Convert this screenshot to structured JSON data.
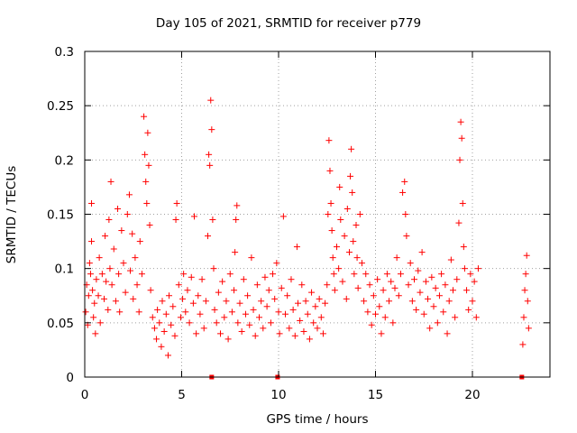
{
  "chart_data": {
    "type": "scatter",
    "title": "Day 105 of 2021, SRMTID for receiver p779",
    "xlabel": "GPS time / hours",
    "ylabel": "SRMTID / TECUs",
    "xlim": [
      0,
      24
    ],
    "ylim": [
      0,
      0.3
    ],
    "x_ticks": [
      0,
      5,
      10,
      15,
      20
    ],
    "x_tick_labels": [
      "0",
      "5",
      "10",
      "15",
      "20"
    ],
    "y_ticks": [
      0,
      0.05,
      0.1,
      0.15,
      0.2,
      0.25,
      0.3
    ],
    "y_tick_labels": [
      "0",
      "0.05",
      "0.1",
      "0.15",
      "0.2",
      "0.25",
      "0.3"
    ],
    "grid": true,
    "series_color": "#ff0000",
    "marker": "+",
    "zero_markers_x": [
      6.55,
      9.95,
      22.55
    ],
    "series": [
      {
        "name": "SRMTID",
        "points": [
          [
            0.05,
            0.06
          ],
          [
            0.1,
            0.085
          ],
          [
            0.15,
            0.048
          ],
          [
            0.2,
            0.075
          ],
          [
            0.25,
            0.105
          ],
          [
            0.3,
            0.095
          ],
          [
            0.35,
            0.16
          ],
          [
            0.35,
            0.125
          ],
          [
            0.4,
            0.08
          ],
          [
            0.45,
            0.055
          ],
          [
            0.5,
            0.068
          ],
          [
            0.55,
            0.04
          ],
          [
            0.6,
            0.09
          ],
          [
            0.7,
            0.075
          ],
          [
            0.75,
            0.11
          ],
          [
            0.8,
            0.05
          ],
          [
            0.9,
            0.095
          ],
          [
            1.0,
            0.072
          ],
          [
            1.05,
            0.13
          ],
          [
            1.1,
            0.088
          ],
          [
            1.2,
            0.062
          ],
          [
            1.25,
            0.145
          ],
          [
            1.3,
            0.1
          ],
          [
            1.35,
            0.18
          ],
          [
            1.4,
            0.085
          ],
          [
            1.5,
            0.118
          ],
          [
            1.6,
            0.07
          ],
          [
            1.7,
            0.155
          ],
          [
            1.75,
            0.095
          ],
          [
            1.8,
            0.06
          ],
          [
            1.9,
            0.135
          ],
          [
            2.0,
            0.105
          ],
          [
            2.1,
            0.078
          ],
          [
            2.2,
            0.15
          ],
          [
            2.3,
            0.168
          ],
          [
            2.35,
            0.098
          ],
          [
            2.45,
            0.132
          ],
          [
            2.5,
            0.072
          ],
          [
            2.6,
            0.11
          ],
          [
            2.7,
            0.085
          ],
          [
            2.8,
            0.06
          ],
          [
            2.85,
            0.125
          ],
          [
            2.95,
            0.095
          ],
          [
            3.05,
            0.24
          ],
          [
            3.1,
            0.205
          ],
          [
            3.15,
            0.18
          ],
          [
            3.2,
            0.16
          ],
          [
            3.25,
            0.225
          ],
          [
            3.3,
            0.195
          ],
          [
            3.35,
            0.14
          ],
          [
            3.4,
            0.08
          ],
          [
            3.5,
            0.055
          ],
          [
            3.6,
            0.045
          ],
          [
            3.7,
            0.035
          ],
          [
            3.75,
            0.062
          ],
          [
            3.85,
            0.05
          ],
          [
            3.95,
            0.028
          ],
          [
            4.0,
            0.07
          ],
          [
            4.1,
            0.042
          ],
          [
            4.2,
            0.058
          ],
          [
            4.3,
            0.02
          ],
          [
            4.35,
            0.075
          ],
          [
            4.45,
            0.048
          ],
          [
            4.55,
            0.065
          ],
          [
            4.65,
            0.038
          ],
          [
            4.7,
            0.145
          ],
          [
            4.75,
            0.16
          ],
          [
            4.85,
            0.085
          ],
          [
            4.95,
            0.055
          ],
          [
            5.05,
            0.072
          ],
          [
            5.1,
            0.095
          ],
          [
            5.2,
            0.06
          ],
          [
            5.3,
            0.08
          ],
          [
            5.4,
            0.05
          ],
          [
            5.5,
            0.092
          ],
          [
            5.6,
            0.068
          ],
          [
            5.65,
            0.148
          ],
          [
            5.75,
            0.04
          ],
          [
            5.85,
            0.075
          ],
          [
            5.95,
            0.058
          ],
          [
            6.05,
            0.09
          ],
          [
            6.15,
            0.045
          ],
          [
            6.25,
            0.07
          ],
          [
            6.35,
            0.13
          ],
          [
            6.4,
            0.205
          ],
          [
            6.45,
            0.195
          ],
          [
            6.5,
            0.255
          ],
          [
            6.55,
            0.228
          ],
          [
            6.6,
            0.145
          ],
          [
            6.65,
            0.1
          ],
          [
            6.7,
            0.062
          ],
          [
            6.8,
            0.05
          ],
          [
            6.9,
            0.078
          ],
          [
            7.0,
            0.04
          ],
          [
            7.1,
            0.088
          ],
          [
            7.2,
            0.055
          ],
          [
            7.3,
            0.07
          ],
          [
            7.4,
            0.035
          ],
          [
            7.5,
            0.095
          ],
          [
            7.6,
            0.06
          ],
          [
            7.7,
            0.08
          ],
          [
            7.75,
            0.115
          ],
          [
            7.8,
            0.145
          ],
          [
            7.85,
            0.158
          ],
          [
            7.9,
            0.05
          ],
          [
            8.0,
            0.068
          ],
          [
            8.1,
            0.042
          ],
          [
            8.2,
            0.09
          ],
          [
            8.3,
            0.058
          ],
          [
            8.4,
            0.075
          ],
          [
            8.5,
            0.048
          ],
          [
            8.6,
            0.11
          ],
          [
            8.7,
            0.062
          ],
          [
            8.8,
            0.038
          ],
          [
            8.9,
            0.085
          ],
          [
            9.0,
            0.055
          ],
          [
            9.1,
            0.07
          ],
          [
            9.2,
            0.045
          ],
          [
            9.3,
            0.092
          ],
          [
            9.4,
            0.065
          ],
          [
            9.5,
            0.08
          ],
          [
            9.6,
            0.05
          ],
          [
            9.7,
            0.095
          ],
          [
            9.8,
            0.072
          ],
          [
            9.9,
            0.105
          ],
          [
            10.0,
            0.06
          ],
          [
            10.05,
            0.04
          ],
          [
            10.15,
            0.082
          ],
          [
            10.25,
            0.148
          ],
          [
            10.35,
            0.058
          ],
          [
            10.45,
            0.075
          ],
          [
            10.55,
            0.045
          ],
          [
            10.65,
            0.09
          ],
          [
            10.75,
            0.062
          ],
          [
            10.85,
            0.038
          ],
          [
            10.95,
            0.12
          ],
          [
            11.0,
            0.068
          ],
          [
            11.1,
            0.052
          ],
          [
            11.2,
            0.085
          ],
          [
            11.3,
            0.042
          ],
          [
            11.4,
            0.07
          ],
          [
            11.5,
            0.058
          ],
          [
            11.6,
            0.035
          ],
          [
            11.7,
            0.078
          ],
          [
            11.8,
            0.05
          ],
          [
            11.9,
            0.065
          ],
          [
            12.0,
            0.045
          ],
          [
            12.1,
            0.072
          ],
          [
            12.2,
            0.055
          ],
          [
            12.3,
            0.04
          ],
          [
            12.4,
            0.068
          ],
          [
            12.5,
            0.085
          ],
          [
            12.55,
            0.15
          ],
          [
            12.6,
            0.218
          ],
          [
            12.65,
            0.19
          ],
          [
            12.7,
            0.16
          ],
          [
            12.75,
            0.135
          ],
          [
            12.8,
            0.11
          ],
          [
            12.85,
            0.095
          ],
          [
            12.9,
            0.08
          ],
          [
            13.0,
            0.12
          ],
          [
            13.1,
            0.1
          ],
          [
            13.15,
            0.175
          ],
          [
            13.2,
            0.145
          ],
          [
            13.3,
            0.088
          ],
          [
            13.4,
            0.13
          ],
          [
            13.5,
            0.072
          ],
          [
            13.55,
            0.155
          ],
          [
            13.65,
            0.115
          ],
          [
            13.7,
            0.185
          ],
          [
            13.75,
            0.21
          ],
          [
            13.8,
            0.17
          ],
          [
            13.85,
            0.125
          ],
          [
            13.9,
            0.095
          ],
          [
            14.0,
            0.14
          ],
          [
            14.05,
            0.11
          ],
          [
            14.1,
            0.082
          ],
          [
            14.2,
            0.15
          ],
          [
            14.3,
            0.105
          ],
          [
            14.4,
            0.07
          ],
          [
            14.5,
            0.095
          ],
          [
            14.6,
            0.06
          ],
          [
            14.7,
            0.085
          ],
          [
            14.8,
            0.048
          ],
          [
            14.9,
            0.075
          ],
          [
            15.0,
            0.058
          ],
          [
            15.1,
            0.09
          ],
          [
            15.2,
            0.065
          ],
          [
            15.3,
            0.04
          ],
          [
            15.4,
            0.08
          ],
          [
            15.5,
            0.055
          ],
          [
            15.6,
            0.095
          ],
          [
            15.7,
            0.07
          ],
          [
            15.8,
            0.088
          ],
          [
            15.9,
            0.05
          ],
          [
            16.0,
            0.082
          ],
          [
            16.1,
            0.11
          ],
          [
            16.2,
            0.075
          ],
          [
            16.3,
            0.095
          ],
          [
            16.4,
            0.17
          ],
          [
            16.5,
            0.18
          ],
          [
            16.55,
            0.15
          ],
          [
            16.6,
            0.13
          ],
          [
            16.7,
            0.085
          ],
          [
            16.8,
            0.105
          ],
          [
            16.9,
            0.07
          ],
          [
            17.0,
            0.09
          ],
          [
            17.1,
            0.062
          ],
          [
            17.2,
            0.098
          ],
          [
            17.3,
            0.078
          ],
          [
            17.4,
            0.115
          ],
          [
            17.5,
            0.058
          ],
          [
            17.6,
            0.088
          ],
          [
            17.7,
            0.072
          ],
          [
            17.8,
            0.045
          ],
          [
            17.9,
            0.092
          ],
          [
            18.0,
            0.065
          ],
          [
            18.1,
            0.082
          ],
          [
            18.2,
            0.05
          ],
          [
            18.3,
            0.075
          ],
          [
            18.4,
            0.095
          ],
          [
            18.5,
            0.06
          ],
          [
            18.6,
            0.085
          ],
          [
            18.7,
            0.04
          ],
          [
            18.8,
            0.07
          ],
          [
            18.9,
            0.108
          ],
          [
            19.0,
            0.08
          ],
          [
            19.1,
            0.055
          ],
          [
            19.2,
            0.09
          ],
          [
            19.3,
            0.142
          ],
          [
            19.35,
            0.2
          ],
          [
            19.4,
            0.235
          ],
          [
            19.45,
            0.22
          ],
          [
            19.5,
            0.16
          ],
          [
            19.55,
            0.12
          ],
          [
            19.6,
            0.1
          ],
          [
            19.7,
            0.08
          ],
          [
            19.8,
            0.062
          ],
          [
            19.9,
            0.095
          ],
          [
            20.0,
            0.07
          ],
          [
            20.1,
            0.088
          ],
          [
            20.2,
            0.055
          ],
          [
            20.3,
            0.1
          ],
          [
            22.6,
            0.03
          ],
          [
            22.65,
            0.055
          ],
          [
            22.7,
            0.08
          ],
          [
            22.75,
            0.095
          ],
          [
            22.8,
            0.112
          ],
          [
            22.85,
            0.07
          ],
          [
            22.9,
            0.045
          ]
        ]
      }
    ]
  }
}
